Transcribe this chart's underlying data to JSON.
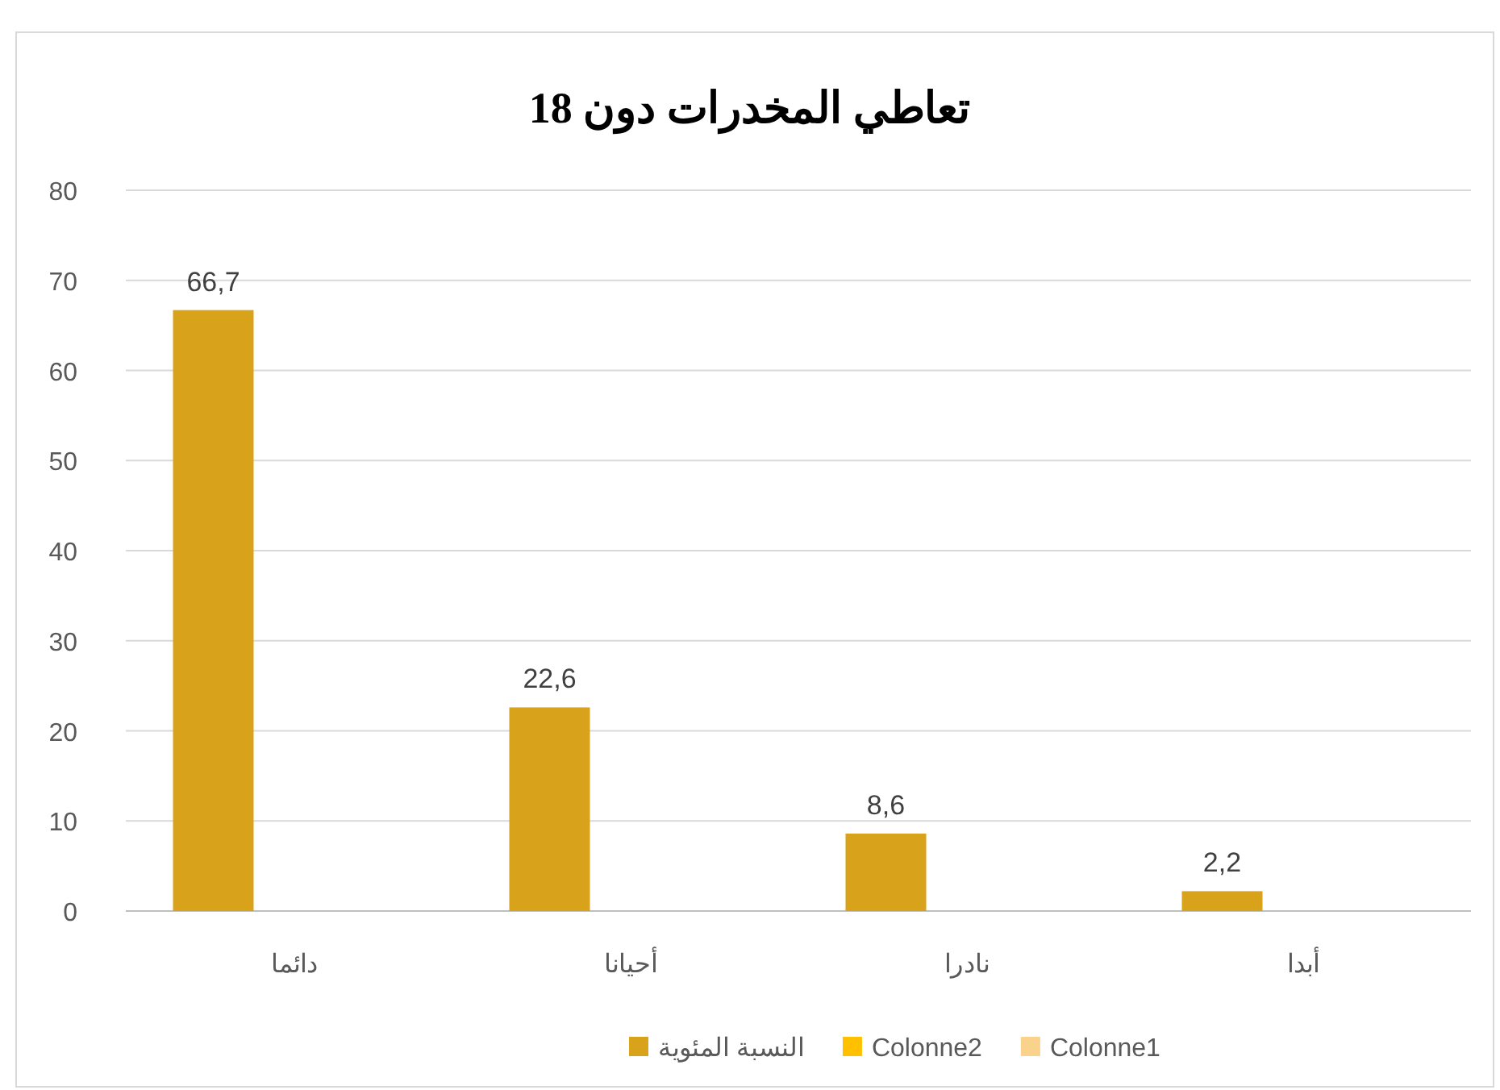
{
  "chart_data": {
    "type": "bar",
    "title": "تعاطي المخدرات دون 18",
    "categories": [
      "دائما",
      "أحيانا",
      "نادرا",
      "أبدا"
    ],
    "series": [
      {
        "name": "النسبة المئوية",
        "color": "#d9a21b",
        "values": [
          66.7,
          22.6,
          8.6,
          2.2
        ],
        "value_labels": [
          "66,7",
          "22,6",
          "8,6",
          "2,2"
        ]
      },
      {
        "name": "Colonne2",
        "color": "#ffc000",
        "values": [
          null,
          null,
          null,
          null
        ]
      },
      {
        "name": "Colonne1",
        "color": "#f9d38c",
        "values": [
          null,
          null,
          null,
          null
        ]
      }
    ],
    "ylim": [
      0,
      80
    ],
    "yticks": [
      0,
      10,
      20,
      30,
      40,
      50,
      60,
      70,
      80
    ],
    "grid": "y",
    "legend": "bottom"
  }
}
